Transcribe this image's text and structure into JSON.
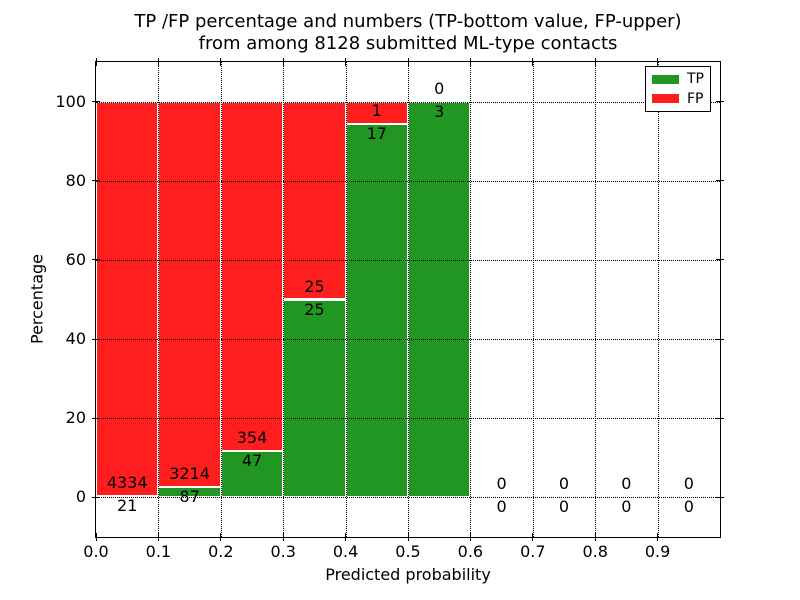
{
  "chart_data": {
    "type": "bar",
    "stacked": true,
    "title": "TP /FP percentage and numbers (TP-bottom value, FP-upper)",
    "subtitle": "from among 8128 submitted ML-type contacts",
    "xlabel": "Predicted probability",
    "ylabel": "Percentage",
    "xlim": [
      0.0,
      1.0
    ],
    "ylim": [
      -10,
      110
    ],
    "bin_width": 0.1,
    "x_tick_labels": [
      "0.0",
      "0.1",
      "0.2",
      "0.3",
      "0.4",
      "0.5",
      "0.6",
      "0.7",
      "0.8",
      "0.9"
    ],
    "x_tick_values": [
      0.0,
      0.1,
      0.2,
      0.3,
      0.4,
      0.5,
      0.6,
      0.7,
      0.8,
      0.9
    ],
    "y_tick_labels": [
      "0",
      "20",
      "40",
      "60",
      "80",
      "100"
    ],
    "y_tick_values": [
      0,
      20,
      40,
      60,
      80,
      100
    ],
    "grid": true,
    "grid_style": "dotted",
    "axisbelow": false,
    "categories": [
      "0.0-0.1",
      "0.1-0.2",
      "0.2-0.3",
      "0.3-0.4",
      "0.4-0.5",
      "0.5-0.6",
      "0.6-0.7",
      "0.7-0.8",
      "0.8-0.9",
      "0.9-1.0"
    ],
    "series": [
      {
        "name": "TP",
        "color": "#229622",
        "values": [
          21,
          87,
          47,
          25,
          17,
          3,
          0,
          0,
          0,
          0
        ]
      },
      {
        "name": "FP",
        "color": "#ff1e1e",
        "values": [
          4334,
          3214,
          354,
          25,
          1,
          0,
          0,
          0,
          0,
          0
        ]
      }
    ],
    "bar_edge_color": "#ffffff",
    "value_display": "stacked bars normalized to 100%, TP count labeled below segment boundary, FP count labeled above",
    "legend": {
      "position": "upper right",
      "entries": [
        {
          "label": "TP",
          "color": "#229622"
        },
        {
          "label": "FP",
          "color": "#ff1e1e"
        }
      ]
    }
  }
}
